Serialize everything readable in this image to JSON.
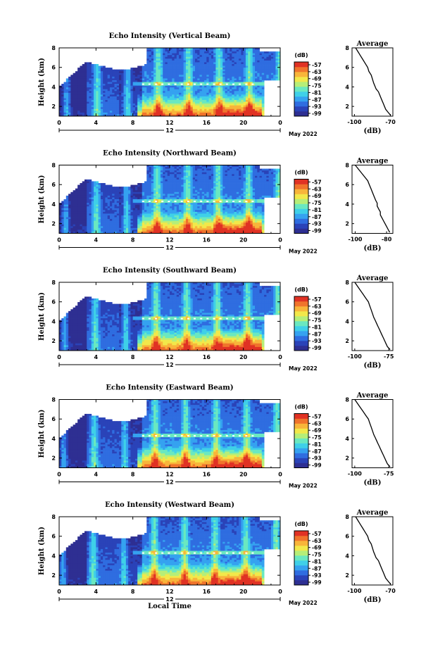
{
  "colormap": [
    "#2e2f92",
    "#2a43b8",
    "#2f6de0",
    "#35a2f0",
    "#3fd0e8",
    "#6ae8c0",
    "#b6ee78",
    "#f2e84a",
    "#f8b53a",
    "#f0742c",
    "#e03224"
  ],
  "chart_data": [
    {
      "type": "heatmap",
      "title": "Echo Intensity (Vertical Beam)",
      "ylabel": "Height (km)",
      "xticks": [
        "0",
        "4",
        "8",
        "12",
        "16",
        "20",
        "0"
      ],
      "yticks": [
        "2",
        "4",
        "6",
        "8"
      ],
      "xlim": [
        0,
        24
      ],
      "ylim": [
        1,
        8
      ],
      "colorbar": {
        "label": "(dB)",
        "ticks": [
          "-57",
          "-63",
          "-69",
          "-75",
          "-81",
          "-87",
          "-93",
          "-99"
        ]
      },
      "date_label": "12",
      "month_label": "May 2022",
      "profile": {
        "title": "Average",
        "xlabel": "(dB)",
        "xticks": [
          "-100",
          "-70"
        ],
        "xlim": [
          -102,
          -68
        ],
        "yticks": [
          "2",
          "4",
          "6",
          "8"
        ],
        "x": [
          -99,
          -97,
          -95,
          -93,
          -91,
          -89,
          -88,
          -86,
          -85,
          -84,
          -83,
          -82,
          -80,
          -79,
          -78,
          -77,
          -76,
          -75,
          -74,
          -72,
          -70
        ],
        "y": [
          8,
          7.6,
          7.2,
          6.8,
          6.4,
          6,
          5.6,
          5.2,
          4.8,
          4.4,
          4.1,
          3.8,
          3.5,
          3.2,
          2.9,
          2.6,
          2.3,
          2,
          1.7,
          1.4,
          1.1
        ]
      }
    },
    {
      "type": "heatmap",
      "title": "Echo Intensity (Northward Beam)",
      "ylabel": "Height (km)",
      "xticks": [
        "0",
        "4",
        "8",
        "12",
        "16",
        "20",
        "0"
      ],
      "yticks": [
        "2",
        "4",
        "6",
        "8"
      ],
      "xlim": [
        0,
        24
      ],
      "ylim": [
        1,
        8
      ],
      "colorbar": {
        "label": "(dB)",
        "ticks": [
          "-57",
          "-63",
          "-69",
          "-75",
          "-81",
          "-87",
          "-93",
          "-99"
        ]
      },
      "date_label": "12",
      "month_label": "May 2022",
      "profile": {
        "title": "Average",
        "xlabel": "(dB)",
        "xticks": [
          "-100",
          "-80"
        ],
        "xlim": [
          -102,
          -76
        ],
        "yticks": [
          "2",
          "4",
          "6",
          "8"
        ],
        "x": [
          -100,
          -98,
          -96,
          -94,
          -92,
          -91,
          -90,
          -89,
          -88,
          -87,
          -86,
          -86,
          -85,
          -84,
          -84,
          -83,
          -82,
          -81,
          -80,
          -79,
          -78
        ],
        "y": [
          8,
          7.6,
          7.2,
          6.8,
          6.4,
          6,
          5.6,
          5.2,
          4.8,
          4.4,
          4.1,
          3.8,
          3.5,
          3.2,
          2.9,
          2.6,
          2.3,
          2,
          1.7,
          1.4,
          1.1
        ]
      }
    },
    {
      "type": "heatmap",
      "title": "Echo Intensity (Southward Beam)",
      "ylabel": "Height (km)",
      "xticks": [
        "0",
        "4",
        "8",
        "12",
        "16",
        "20",
        "0"
      ],
      "yticks": [
        "2",
        "4",
        "6",
        "8"
      ],
      "xlim": [
        0,
        24
      ],
      "ylim": [
        1,
        8
      ],
      "colorbar": {
        "label": "(dB)",
        "ticks": [
          "-57",
          "-63",
          "-69",
          "-75",
          "-81",
          "-87",
          "-93",
          "-99"
        ]
      },
      "date_label": "12",
      "month_label": "May 2022",
      "profile": {
        "title": "Average",
        "xlabel": "(dB)",
        "xticks": [
          "-100",
          "-75"
        ],
        "xlim": [
          -102,
          -72
        ],
        "yticks": [
          "2",
          "4",
          "6",
          "8"
        ],
        "x": [
          -100,
          -98,
          -96,
          -94,
          -92,
          -90,
          -89,
          -88,
          -87,
          -86,
          -85,
          -84,
          -83,
          -82,
          -81,
          -80,
          -79,
          -78,
          -77,
          -76,
          -74
        ],
        "y": [
          8,
          7.6,
          7.2,
          6.8,
          6.4,
          6,
          5.6,
          5.2,
          4.8,
          4.4,
          4.1,
          3.8,
          3.5,
          3.2,
          2.9,
          2.6,
          2.3,
          2,
          1.7,
          1.4,
          1.1
        ]
      }
    },
    {
      "type": "heatmap",
      "title": "Echo Intensity (Eastward Beam)",
      "ylabel": "Height (km)",
      "xticks": [
        "0",
        "4",
        "8",
        "12",
        "16",
        "20",
        "0"
      ],
      "yticks": [
        "2",
        "4",
        "6",
        "8"
      ],
      "xlim": [
        0,
        24
      ],
      "ylim": [
        1,
        8
      ],
      "colorbar": {
        "label": "(dB)",
        "ticks": [
          "-57",
          "-63",
          "-69",
          "-75",
          "-81",
          "-87",
          "-93",
          "-99"
        ]
      },
      "date_label": "12",
      "month_label": "May 2022",
      "profile": {
        "title": "Average",
        "xlabel": "(dB)",
        "xticks": [
          "-100",
          "-75"
        ],
        "xlim": [
          -102,
          -72
        ],
        "yticks": [
          "2",
          "4",
          "6",
          "8"
        ],
        "x": [
          -100,
          -98,
          -96,
          -94,
          -92,
          -90,
          -89,
          -88,
          -87,
          -86,
          -85,
          -84,
          -83,
          -82,
          -81,
          -80,
          -79,
          -78,
          -77,
          -76,
          -74
        ],
        "y": [
          8,
          7.6,
          7.2,
          6.8,
          6.4,
          6,
          5.6,
          5.2,
          4.8,
          4.4,
          4.1,
          3.8,
          3.5,
          3.2,
          2.9,
          2.6,
          2.3,
          2,
          1.7,
          1.4,
          1.1
        ]
      }
    },
    {
      "type": "heatmap",
      "title": "Echo Intensity (Westward Beam)",
      "ylabel": "Height (km)",
      "xticks": [
        "0",
        "4",
        "8",
        "12",
        "16",
        "20",
        "0"
      ],
      "yticks": [
        "2",
        "4",
        "6",
        "8"
      ],
      "xlim": [
        0,
        24
      ],
      "ylim": [
        1,
        8
      ],
      "colorbar": {
        "label": "(dB)",
        "ticks": [
          "-57",
          "-63",
          "-69",
          "-75",
          "-81",
          "-87",
          "-93",
          "-99"
        ]
      },
      "date_label": "12",
      "month_label": "May 2022",
      "profile": {
        "title": "Average",
        "xlabel": "(dB)",
        "xticks": [
          "-100",
          "-70"
        ],
        "xlim": [
          -102,
          -68
        ],
        "yticks": [
          "2",
          "4",
          "6",
          "8"
        ],
        "x": [
          -99,
          -97,
          -95,
          -93,
          -91,
          -89,
          -88,
          -86,
          -85,
          -84,
          -83,
          -82,
          -80,
          -79,
          -78,
          -77,
          -76,
          -75,
          -74,
          -72,
          -70
        ],
        "y": [
          8,
          7.6,
          7.2,
          6.8,
          6.4,
          6,
          5.6,
          5.2,
          4.8,
          4.4,
          4.1,
          3.8,
          3.5,
          3.2,
          2.9,
          2.6,
          2.3,
          2,
          1.7,
          1.4,
          1.1
        ]
      }
    }
  ],
  "shared_xlabel": "Local Time"
}
